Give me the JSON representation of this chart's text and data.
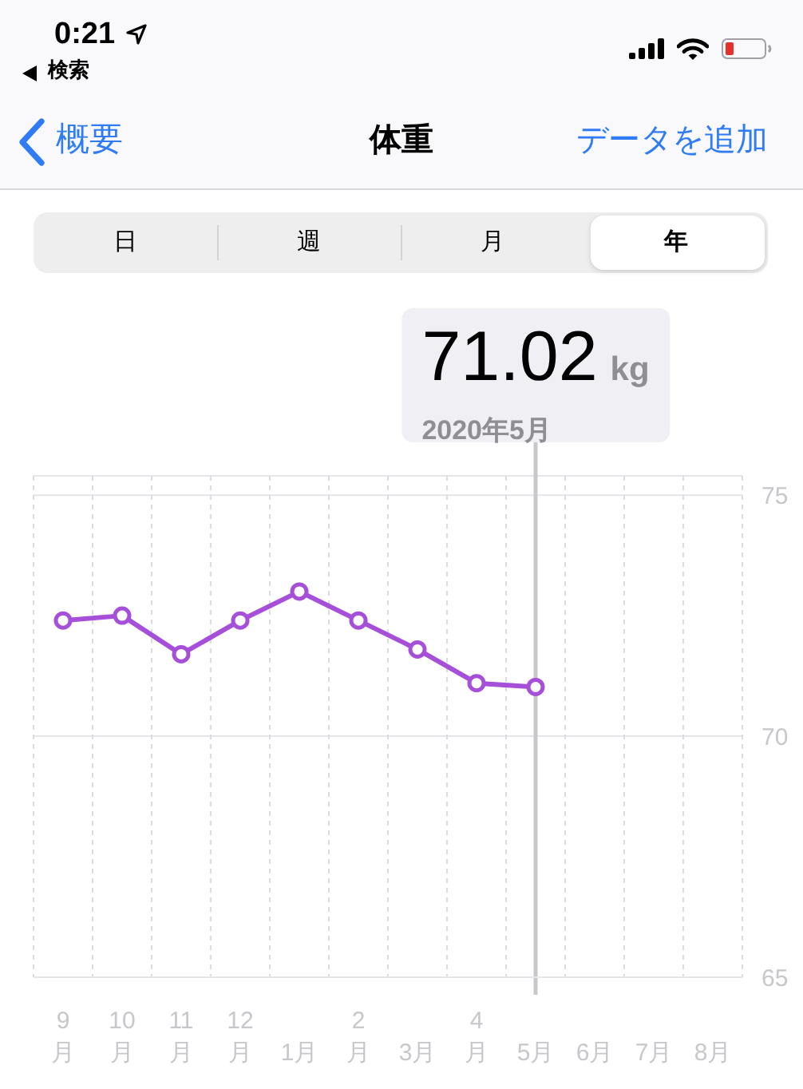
{
  "chart_data": {
    "type": "line",
    "title": "体重",
    "categories": [
      "9\n月",
      "10\n月",
      "11\n月",
      "12\n月",
      "1月",
      "2\n月",
      "3月",
      "4\n月",
      "5月",
      "6月",
      "7月",
      "8月"
    ],
    "values": [
      72.4,
      72.5,
      71.7,
      72.4,
      73,
      72.4,
      71.8,
      71.1,
      71.02,
      null,
      null,
      null
    ],
    "color": "#a64fd8",
    "ylim": [
      65,
      75.4
    ],
    "yticks": [
      65,
      70,
      75
    ],
    "grid": true,
    "marker": "circle",
    "ref_lines": [
      {
        "axis": "x",
        "value": "5月",
        "color": "#c7c7cc"
      }
    ],
    "annotations": [
      "0:21",
      "検索",
      "概要",
      "データを追加",
      "日",
      "週",
      "月",
      "年",
      "71.02 kg",
      "2020年5月"
    ]
  }
}
